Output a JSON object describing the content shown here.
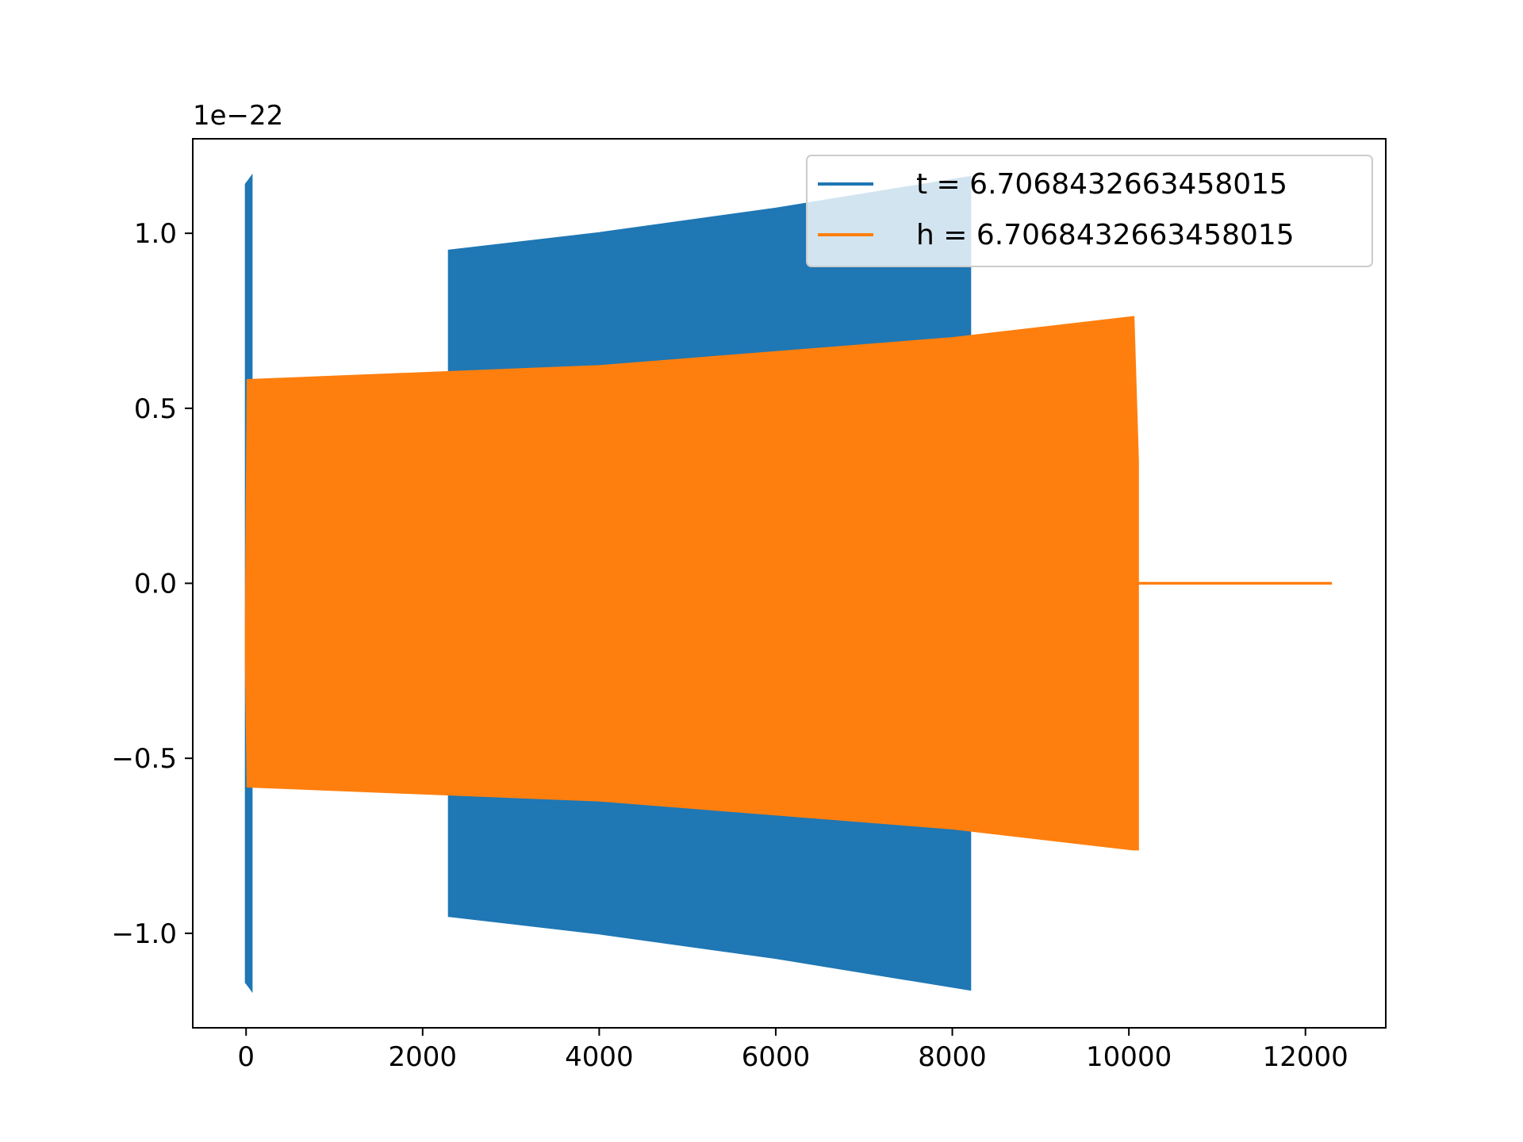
{
  "chart_data": {
    "type": "area",
    "title": "",
    "xlabel": "",
    "ylabel": "",
    "offset_label": "1e−22",
    "xlim": [
      -604,
      12910
    ],
    "ylim": [
      -1.27,
      1.27
    ],
    "xticks": [
      0,
      2000,
      4000,
      6000,
      8000,
      10000,
      12000
    ],
    "xtick_labels": [
      "0",
      "2000",
      "4000",
      "6000",
      "8000",
      "10000",
      "12000"
    ],
    "yticks": [
      -1.0,
      -0.5,
      0.0,
      0.5,
      1.0
    ],
    "ytick_labels": [
      "−1.0",
      "−0.5",
      "0.0",
      "0.5",
      "1.0"
    ],
    "legend_position": "upper right",
    "grid": false,
    "series": [
      {
        "name": "t = 6.7068432663458015",
        "color": "#1f77b4",
        "description": "dense oscillation; blue envelope (upper/lower) in units of 1e-22",
        "segments": [
          {
            "x": [
              0,
              30,
              60
            ],
            "upper": [
              1.14,
              1.15,
              1.16
            ],
            "lower": [
              -1.14,
              -1.15,
              -1.16
            ]
          },
          {
            "x": [
              2300,
              4000,
              6000,
              8200
            ],
            "upper": [
              0.95,
              1.0,
              1.07,
              1.16
            ],
            "lower": [
              -0.95,
              -1.0,
              -1.07,
              -1.16
            ]
          }
        ]
      },
      {
        "name": "h = 6.7068432663458015",
        "color": "#ff7f0e",
        "description": "dense oscillation; orange envelope in units of 1e-22, then flat zero",
        "segments": [
          {
            "x": [
              0,
              20,
              2000,
              4000,
              6000,
              8000,
              10050,
              10100
            ],
            "upper": [
              -0.12,
              0.58,
              0.6,
              0.62,
              0.66,
              0.7,
              0.76,
              0.35
            ],
            "lower": [
              -0.22,
              -0.58,
              -0.6,
              -0.62,
              -0.66,
              -0.7,
              -0.76,
              -0.76
            ]
          }
        ],
        "tail": {
          "x": [
            10100,
            12300
          ],
          "y": 0.0
        }
      }
    ]
  }
}
